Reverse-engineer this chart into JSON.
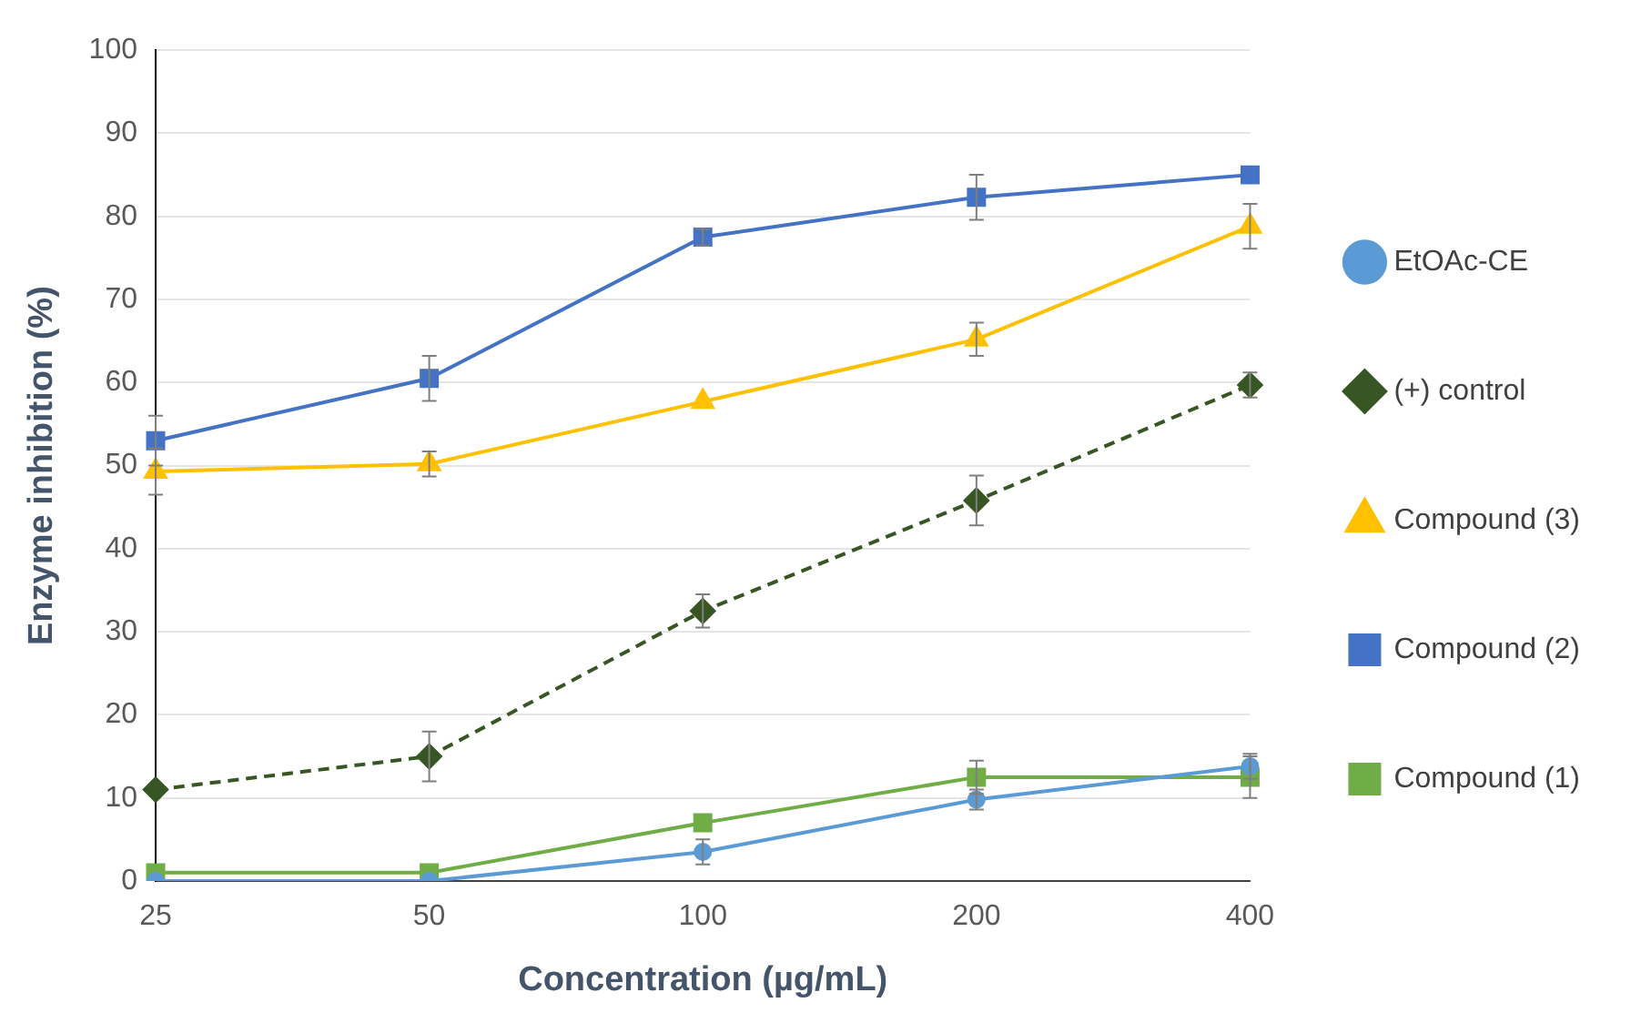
{
  "chart_data": {
    "type": "line",
    "xlabel": "Concentration (µg/mL)",
    "ylabel": "Enzyme inhibition (%)",
    "categories": [
      "25",
      "50",
      "100",
      "200",
      "400"
    ],
    "ylim": [
      0,
      100
    ],
    "yticks": [
      0,
      10,
      20,
      30,
      40,
      50,
      60,
      70,
      80,
      90,
      100
    ],
    "grid": "y",
    "legend": "right",
    "series": [
      {
        "name": "Compound (1)",
        "color": "#70ad47",
        "marker": "square",
        "line_style": "solid",
        "values": [
          1,
          1,
          7,
          12.5,
          12.5
        ],
        "errors": [
          null,
          null,
          null,
          2,
          2.5
        ]
      },
      {
        "name": "Compound (2)",
        "color": "#4472c4",
        "marker": "square",
        "line_style": "solid",
        "values": [
          53,
          60.5,
          77.5,
          82.3,
          85
        ],
        "errors": [
          3,
          2.7,
          1,
          2.7,
          null
        ]
      },
      {
        "name": "Compound (3)",
        "color": "#ffc000",
        "marker": "triangle",
        "line_style": "solid",
        "values": [
          49.3,
          50.2,
          57.7,
          65.2,
          78.8
        ],
        "errors": [
          2.8,
          1.5,
          null,
          2,
          2.7
        ]
      },
      {
        "name": "(+) control",
        "color": "#375623",
        "marker": "diamond",
        "line_style": "dashed",
        "values": [
          11,
          15,
          32.5,
          45.8,
          59.7
        ],
        "errors": [
          null,
          3,
          2,
          3,
          1.5
        ]
      },
      {
        "name": "EtOAc-CE",
        "color": "#5b9bd5",
        "marker": "circle",
        "line_style": "solid",
        "values": [
          0,
          0,
          3.5,
          9.8,
          13.8
        ],
        "errors": [
          null,
          null,
          1.5,
          1.2,
          1.5
        ]
      }
    ]
  }
}
